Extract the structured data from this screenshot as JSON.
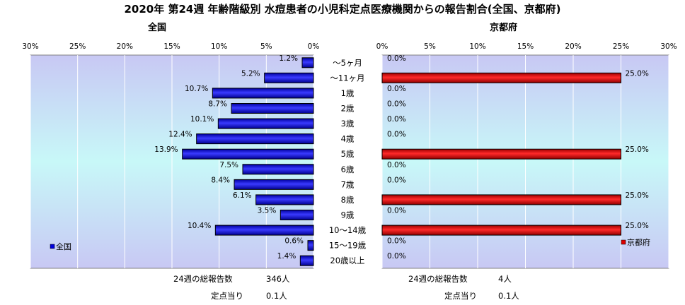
{
  "page": {
    "title": "2020年 第24週 年齢階級別 水痘患者の小児科定点医療機関からの報告割合(全国、京都府)"
  },
  "chart_data": [
    {
      "type": "bar",
      "orientation": "horizontal",
      "title": "全国",
      "direction": "right-to-left",
      "categories": [
        "～5ヶ月",
        "～11ヶ月",
        "1歳",
        "2歳",
        "3歳",
        "4歳",
        "5歳",
        "6歳",
        "7歳",
        "8歳",
        "9歳",
        "10～14歳",
        "15～19歳",
        "20歳以上"
      ],
      "series": [
        {
          "name": "全国",
          "color": "#0000dd",
          "values": [
            1.2,
            5.2,
            10.7,
            8.7,
            10.1,
            12.4,
            13.9,
            7.5,
            8.4,
            6.1,
            3.5,
            10.4,
            0.6,
            1.4
          ]
        }
      ],
      "value_labels": [
        "1.2%",
        "5.2%",
        "10.7%",
        "8.7%",
        "10.1%",
        "12.4%",
        "13.9%",
        "7.5%",
        "8.4%",
        "6.1%",
        "3.5%",
        "10.4%",
        "0.6%",
        "1.4%"
      ],
      "xlim": [
        0,
        30
      ],
      "x_ticks": [
        "30%",
        "25%",
        "20%",
        "15%",
        "10%",
        "5%",
        "0%"
      ],
      "grid": true,
      "legend": "bottom-left"
    },
    {
      "type": "bar",
      "orientation": "horizontal",
      "title": "京都府",
      "direction": "left-to-right",
      "categories": [
        "～5ヶ月",
        "～11ヶ月",
        "1歳",
        "2歳",
        "3歳",
        "4歳",
        "5歳",
        "6歳",
        "7歳",
        "8歳",
        "9歳",
        "10～14歳",
        "15～19歳",
        "20歳以上"
      ],
      "series": [
        {
          "name": "京都府",
          "color": "#dd0000",
          "values": [
            0,
            25,
            0,
            0,
            0,
            0,
            25,
            0,
            0,
            25,
            0,
            25,
            0,
            0
          ]
        }
      ],
      "value_labels": [
        "0.0%",
        "25.0%",
        "0.0%",
        "0.0%",
        "0.0%",
        "0.0%",
        "25.0%",
        "0.0%",
        "0.0%",
        "25.0%",
        "0.0%",
        "25.0%",
        "0.0%",
        "0.0%"
      ],
      "xlim": [
        0,
        30
      ],
      "x_ticks": [
        "0%",
        "5%",
        "10%",
        "15%",
        "20%",
        "25%",
        "30%"
      ],
      "grid": true,
      "legend": "bottom-right"
    }
  ],
  "stats": {
    "national": {
      "total_label": "24週の総報告数",
      "total_value": "346人",
      "per_label": "定点当り",
      "per_value": "0.1人"
    },
    "kyoto": {
      "total_label": "24週の総報告数",
      "total_value": "4人",
      "per_label": "定点当り",
      "per_value": "0.1人"
    }
  },
  "colors": {
    "plot_bg_top": "#c8c8f4",
    "plot_bg_bottom": "#c8f8f8"
  }
}
